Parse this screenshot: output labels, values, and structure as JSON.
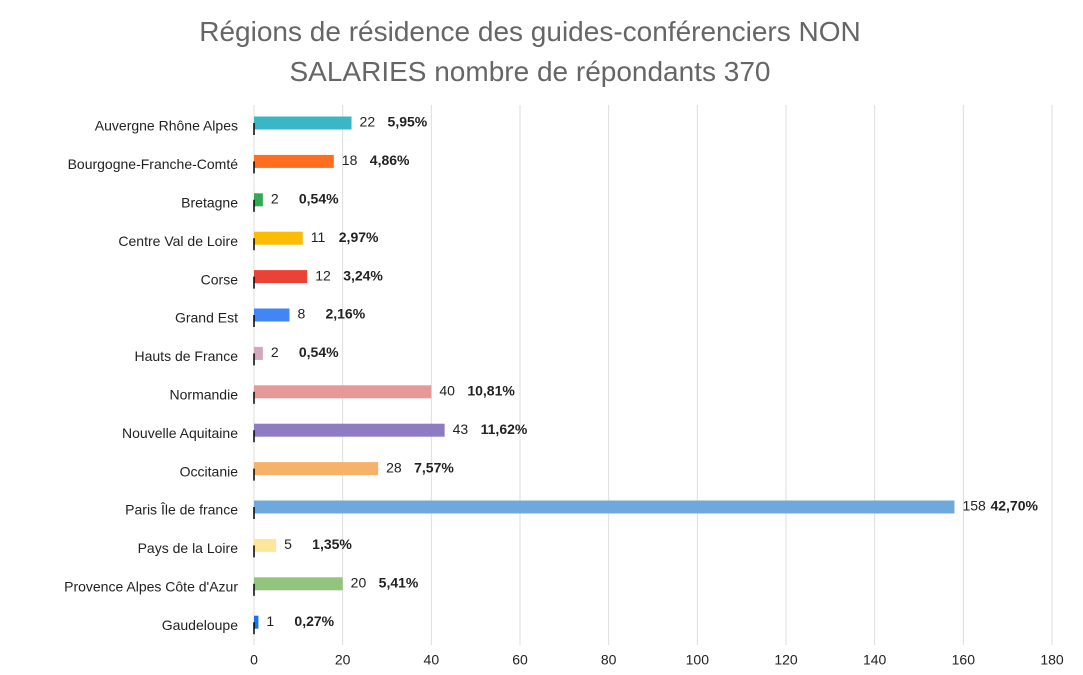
{
  "chart_data": {
    "type": "bar",
    "orientation": "horizontal",
    "title": "Régions de résidence des guides-conférenciers NON SALARIES nombre de répondants 370",
    "categories": [
      "Auvergne Rhône Alpes",
      "Bourgogne-Franche-Comté",
      "Bretagne",
      "Centre Val de Loire",
      "Corse",
      "Grand Est",
      "Hauts de France",
      "Normandie",
      "Nouvelle Aquitaine",
      "Occitanie",
      "Paris Île de france",
      "Pays de la Loire",
      "Provence Alpes Côte d'Azur",
      "Gaudeloupe"
    ],
    "values": [
      22,
      18,
      2,
      11,
      12,
      8,
      2,
      40,
      43,
      28,
      158,
      5,
      20,
      1
    ],
    "percents": [
      5.95,
      4.86,
      0.54,
      2.97,
      3.24,
      2.16,
      0.54,
      10.81,
      11.62,
      7.57,
      42.7,
      1.35,
      5.41,
      0.27
    ],
    "percent_labels": [
      "5,95%",
      "4,86%",
      "0,54%",
      "2,97%",
      "3,24%",
      "2,16%",
      "0,54%",
      "10,81%",
      "11,62%",
      "7,57%",
      "42,70%",
      "1,35%",
      "5,41%",
      "0,27%"
    ],
    "colors": [
      "#3bb6c4",
      "#ff6d1f",
      "#34a853",
      "#fbbc04",
      "#ea4335",
      "#4285f4",
      "#d5a6bd",
      "#e69999",
      "#8e7cc3",
      "#f6b26b",
      "#6fa8dc",
      "#ffe599",
      "#93c47d",
      "#1a73e8"
    ],
    "xlim": [
      0,
      180
    ],
    "xticks": [
      0,
      20,
      40,
      60,
      80,
      100,
      120,
      140,
      160,
      180
    ],
    "grid": true
  }
}
